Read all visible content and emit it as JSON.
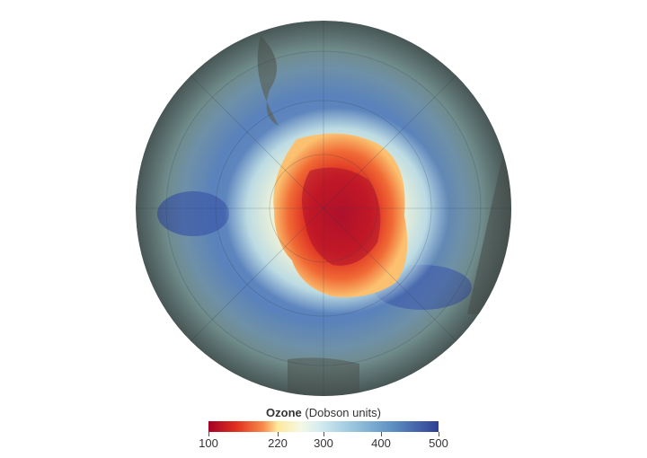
{
  "legend": {
    "title_bold": "Ozone",
    "title_rest": " (Dobson units)",
    "min": 100,
    "max": 500,
    "ticks": [
      "100",
      "220",
      "300",
      "400",
      "500"
    ],
    "colors": [
      "#a50026",
      "#e0301e",
      "#f88d4c",
      "#fee99a",
      "#f4f8e4",
      "#9cc8de",
      "#5d8fc2",
      "#2f3f94"
    ]
  },
  "map": {
    "projection": "south polar orthographic",
    "hole_color": "#d7191c",
    "ring_color": "#3f64b0"
  }
}
